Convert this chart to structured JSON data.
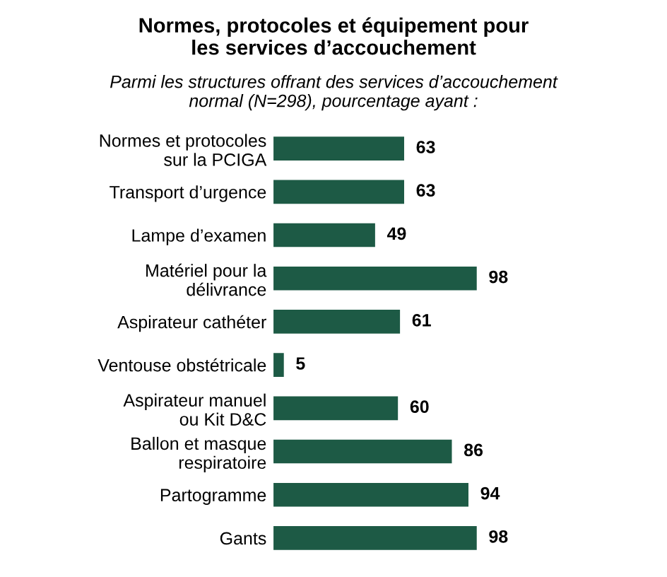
{
  "chart_data": {
    "type": "bar",
    "orientation": "horizontal",
    "title": "Normes, protocoles et équipement pour\nles services d’accouchement",
    "subtitle": "Parmi les structures offrant des services d’accouchement\nnormal (N=298), pourcentage ayant :",
    "categories": [
      "Normes et protocoles\nsur la PCIGA",
      "Transport d’urgence",
      "Lampe d’examen",
      "Matériel pour la\ndélivrance",
      "Aspirateur cathéter",
      "Ventouse obstétricale",
      "Aspirateur manuel\nou Kit D&C",
      "Ballon et masque\nrespiratoire",
      "Partogramme",
      "Gants"
    ],
    "values": [
      63,
      63,
      49,
      98,
      61,
      5,
      60,
      86,
      94,
      98
    ],
    "color": "#1d5a45",
    "data_labels": true,
    "tick_labels": "y",
    "grid": false,
    "legend": false
  }
}
